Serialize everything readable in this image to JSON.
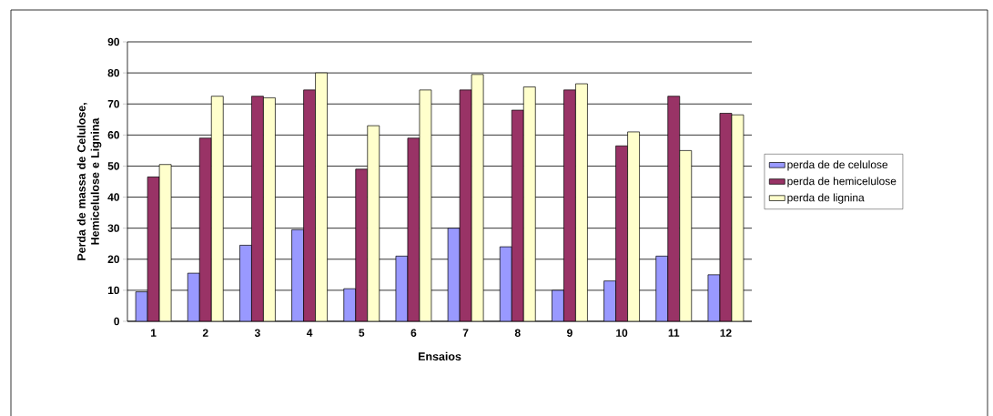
{
  "chart_data": {
    "type": "bar",
    "xlabel": "Ensaios",
    "ylabel": "Perda de massa de Celulose, Hemicelulose e Lignina",
    "categories": [
      "1",
      "2",
      "3",
      "4",
      "5",
      "6",
      "7",
      "8",
      "9",
      "10",
      "11",
      "12"
    ],
    "series": [
      {
        "name": "perda de de celulose",
        "color": "#9999ff",
        "values": [
          9.5,
          15.5,
          24.5,
          29.5,
          10.5,
          21,
          30,
          24,
          10,
          13,
          21,
          15
        ]
      },
      {
        "name": "perda de hemicelulose",
        "color": "#993366",
        "values": [
          46.5,
          59,
          72.5,
          74.5,
          49,
          59,
          74.5,
          68,
          74.5,
          56.5,
          72.5,
          67
        ]
      },
      {
        "name": "perda de lignina",
        "color": "#ffffcc",
        "values": [
          50.5,
          72.5,
          72,
          80,
          63,
          74.5,
          79.5,
          75.5,
          76.5,
          61,
          55,
          66.5
        ]
      }
    ],
    "ylim": [
      0,
      90
    ],
    "yticks": [
      0,
      10,
      20,
      30,
      40,
      50,
      60,
      70,
      80,
      90
    ],
    "grid": "y",
    "legend": "right"
  }
}
